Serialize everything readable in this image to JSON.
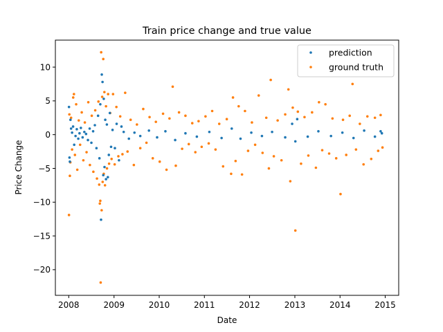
{
  "chart_data": {
    "type": "scatter",
    "title": "Train price change and true value",
    "xlabel": "Date",
    "ylabel": "Price Change",
    "xlim": [
      "2007-09-15",
      "2015-04-20"
    ],
    "ylim": [
      -23.8,
      14.0
    ],
    "x_ticks": [
      "2008",
      "2009",
      "2010",
      "2011",
      "2012",
      "2013",
      "2014",
      "2015"
    ],
    "y_ticks": [
      10,
      5,
      0,
      -5,
      -10,
      -15,
      -20
    ],
    "grid": false,
    "legend_position": "top-right",
    "series": [
      {
        "name": "prediction",
        "color": "#1f77b4",
        "points": [
          {
            "x": "2008-01-03",
            "y": 4.1
          },
          {
            "x": "2008-01-07",
            "y": -3.4
          },
          {
            "x": "2008-01-10",
            "y": -4.0
          },
          {
            "x": "2008-01-15",
            "y": 2.2
          },
          {
            "x": "2008-01-20",
            "y": 0.9
          },
          {
            "x": "2008-01-28",
            "y": 0.3
          },
          {
            "x": "2008-02-05",
            "y": 1.2
          },
          {
            "x": "2008-02-14",
            "y": -1.5
          },
          {
            "x": "2008-02-25",
            "y": -0.2
          },
          {
            "x": "2008-03-06",
            "y": 0.8
          },
          {
            "x": "2008-03-18",
            "y": -0.6
          },
          {
            "x": "2008-03-28",
            "y": 0.2
          },
          {
            "x": "2008-04-08",
            "y": 1.0
          },
          {
            "x": "2008-04-22",
            "y": -0.4
          },
          {
            "x": "2008-05-06",
            "y": 0.4
          },
          {
            "x": "2008-05-20",
            "y": 0.1
          },
          {
            "x": "2008-06-04",
            "y": -0.8
          },
          {
            "x": "2008-06-18",
            "y": 0.9
          },
          {
            "x": "2008-07-02",
            "y": -1.2
          },
          {
            "x": "2008-07-16",
            "y": 0.5
          },
          {
            "x": "2008-07-30",
            "y": 1.4
          },
          {
            "x": "2008-08-12",
            "y": -2.0
          },
          {
            "x": "2008-08-25",
            "y": 2.8
          },
          {
            "x": "2008-09-05",
            "y": -3.5
          },
          {
            "x": "2008-09-12",
            "y": 4.5
          },
          {
            "x": "2008-09-18",
            "y": -12.6
          },
          {
            "x": "2008-09-24",
            "y": 8.9
          },
          {
            "x": "2008-09-30",
            "y": 7.8
          },
          {
            "x": "2008-10-06",
            "y": -6.0
          },
          {
            "x": "2008-10-10",
            "y": 5.3
          },
          {
            "x": "2008-10-16",
            "y": -4.8
          },
          {
            "x": "2008-10-22",
            "y": 2.2
          },
          {
            "x": "2008-10-28",
            "y": -6.6
          },
          {
            "x": "2008-11-04",
            "y": 1.5
          },
          {
            "x": "2008-11-12",
            "y": -6.3
          },
          {
            "x": "2008-11-20",
            "y": -3.0
          },
          {
            "x": "2008-11-28",
            "y": 3.2
          },
          {
            "x": "2008-12-08",
            "y": -1.8
          },
          {
            "x": "2008-12-20",
            "y": 0.7
          },
          {
            "x": "2009-01-08",
            "y": -2.0
          },
          {
            "x": "2009-01-22",
            "y": 1.6
          },
          {
            "x": "2009-02-10",
            "y": -3.8
          },
          {
            "x": "2009-03-02",
            "y": 1.2
          },
          {
            "x": "2009-03-20",
            "y": 0.4
          },
          {
            "x": "2009-05-01",
            "y": -0.6
          },
          {
            "x": "2009-06-15",
            "y": 0.3
          },
          {
            "x": "2009-08-01",
            "y": -0.2
          },
          {
            "x": "2009-10-10",
            "y": 0.6
          },
          {
            "x": "2009-12-15",
            "y": -0.4
          },
          {
            "x": "2010-02-20",
            "y": 0.5
          },
          {
            "x": "2010-05-10",
            "y": -0.8
          },
          {
            "x": "2010-08-01",
            "y": 0.2
          },
          {
            "x": "2010-11-01",
            "y": -0.3
          },
          {
            "x": "2011-02-10",
            "y": 0.4
          },
          {
            "x": "2011-05-20",
            "y": -0.5
          },
          {
            "x": "2011-08-10",
            "y": 0.9
          },
          {
            "x": "2011-10-20",
            "y": -0.6
          },
          {
            "x": "2012-01-15",
            "y": 0.3
          },
          {
            "x": "2012-04-10",
            "y": -0.2
          },
          {
            "x": "2012-07-01",
            "y": 0.4
          },
          {
            "x": "2012-10-15",
            "y": -0.4
          },
          {
            "x": "2012-12-10",
            "y": 1.6
          },
          {
            "x": "2013-01-05",
            "y": -1.0
          },
          {
            "x": "2013-01-20",
            "y": 2.3
          },
          {
            "x": "2013-04-15",
            "y": -0.3
          },
          {
            "x": "2013-07-10",
            "y": 0.5
          },
          {
            "x": "2013-10-20",
            "y": -0.2
          },
          {
            "x": "2014-01-20",
            "y": 0.3
          },
          {
            "x": "2014-04-20",
            "y": -0.5
          },
          {
            "x": "2014-07-15",
            "y": 0.6
          },
          {
            "x": "2014-10-10",
            "y": -0.3
          },
          {
            "x": "2014-11-25",
            "y": 0.5
          },
          {
            "x": "2014-12-05",
            "y": 0.2
          }
        ]
      },
      {
        "name": "ground truth",
        "color": "#ff7f0e",
        "points": [
          {
            "x": "2008-01-03",
            "y": -11.9
          },
          {
            "x": "2008-01-06",
            "y": 3.0
          },
          {
            "x": "2008-01-10",
            "y": -6.1
          },
          {
            "x": "2008-01-14",
            "y": -4.1
          },
          {
            "x": "2008-01-20",
            "y": 2.5
          },
          {
            "x": "2008-01-28",
            "y": -2.2
          },
          {
            "x": "2008-02-06",
            "y": 5.5
          },
          {
            "x": "2008-02-12",
            "y": 6.0
          },
          {
            "x": "2008-02-20",
            "y": -3.0
          },
          {
            "x": "2008-03-01",
            "y": 4.5
          },
          {
            "x": "2008-03-10",
            "y": -5.2
          },
          {
            "x": "2008-03-22",
            "y": 2.1
          },
          {
            "x": "2008-04-02",
            "y": -1.5
          },
          {
            "x": "2008-04-15",
            "y": 3.3
          },
          {
            "x": "2008-04-28",
            "y": -3.8
          },
          {
            "x": "2008-05-10",
            "y": 1.8
          },
          {
            "x": "2008-05-24",
            "y": -2.6
          },
          {
            "x": "2008-06-07",
            "y": 4.8
          },
          {
            "x": "2008-06-20",
            "y": -4.5
          },
          {
            "x": "2008-07-05",
            "y": 2.8
          },
          {
            "x": "2008-07-18",
            "y": -5.5
          },
          {
            "x": "2008-08-02",
            "y": 3.6
          },
          {
            "x": "2008-08-16",
            "y": -6.5
          },
          {
            "x": "2008-08-28",
            "y": 4.9
          },
          {
            "x": "2008-09-03",
            "y": -7.4
          },
          {
            "x": "2008-09-08",
            "y": -10.2
          },
          {
            "x": "2008-09-12",
            "y": -9.8
          },
          {
            "x": "2008-09-15",
            "y": -21.9
          },
          {
            "x": "2008-09-19",
            "y": 12.2
          },
          {
            "x": "2008-09-23",
            "y": -11.2
          },
          {
            "x": "2008-09-27",
            "y": 5.6
          },
          {
            "x": "2008-10-01",
            "y": -7.0
          },
          {
            "x": "2008-10-06",
            "y": 11.2
          },
          {
            "x": "2008-10-10",
            "y": -5.8
          },
          {
            "x": "2008-10-15",
            "y": 6.3
          },
          {
            "x": "2008-10-20",
            "y": -7.5
          },
          {
            "x": "2008-10-28",
            "y": 4.2
          },
          {
            "x": "2008-11-05",
            "y": -5.0
          },
          {
            "x": "2008-11-14",
            "y": 6.0
          },
          {
            "x": "2008-11-22",
            "y": -4.3
          },
          {
            "x": "2008-12-01",
            "y": 3.2
          },
          {
            "x": "2008-12-12",
            "y": -3.6
          },
          {
            "x": "2008-12-24",
            "y": 6.0
          },
          {
            "x": "2009-01-06",
            "y": -4.4
          },
          {
            "x": "2009-01-20",
            "y": 4.1
          },
          {
            "x": "2009-02-05",
            "y": -3.2
          },
          {
            "x": "2009-02-20",
            "y": 2.7
          },
          {
            "x": "2009-03-10",
            "y": -2.9
          },
          {
            "x": "2009-04-01",
            "y": 6.2
          },
          {
            "x": "2009-04-20",
            "y": -2.5
          },
          {
            "x": "2009-05-15",
            "y": 2.2
          },
          {
            "x": "2009-06-10",
            "y": -4.5
          },
          {
            "x": "2009-07-05",
            "y": 1.5
          },
          {
            "x": "2009-08-01",
            "y": -2.0
          },
          {
            "x": "2009-08-25",
            "y": 3.8
          },
          {
            "x": "2009-09-20",
            "y": -1.2
          },
          {
            "x": "2009-10-15",
            "y": 2.6
          },
          {
            "x": "2009-11-10",
            "y": -3.5
          },
          {
            "x": "2009-12-05",
            "y": 1.9
          },
          {
            "x": "2010-01-05",
            "y": -4.0
          },
          {
            "x": "2010-02-01",
            "y": 3.1
          },
          {
            "x": "2010-03-01",
            "y": -5.2
          },
          {
            "x": "2010-03-25",
            "y": 2.4
          },
          {
            "x": "2010-04-20",
            "y": 7.1
          },
          {
            "x": "2010-05-15",
            "y": -4.6
          },
          {
            "x": "2010-06-10",
            "y": 3.3
          },
          {
            "x": "2010-07-05",
            "y": -2.1
          },
          {
            "x": "2010-08-01",
            "y": 2.8
          },
          {
            "x": "2010-08-28",
            "y": -1.4
          },
          {
            "x": "2010-09-25",
            "y": 1.7
          },
          {
            "x": "2010-10-20",
            "y": -2.6
          },
          {
            "x": "2010-11-15",
            "y": 2.0
          },
          {
            "x": "2010-12-10",
            "y": -1.8
          },
          {
            "x": "2011-01-10",
            "y": 2.7
          },
          {
            "x": "2011-02-05",
            "y": -1.3
          },
          {
            "x": "2011-03-05",
            "y": 3.5
          },
          {
            "x": "2011-04-01",
            "y": -2.2
          },
          {
            "x": "2011-05-01",
            "y": 1.6
          },
          {
            "x": "2011-06-01",
            "y": -4.7
          },
          {
            "x": "2011-07-01",
            "y": 2.3
          },
          {
            "x": "2011-08-05",
            "y": -5.8
          },
          {
            "x": "2011-08-20",
            "y": 5.5
          },
          {
            "x": "2011-09-10",
            "y": -3.9
          },
          {
            "x": "2011-10-05",
            "y": 4.2
          },
          {
            "x": "2011-11-01",
            "y": -5.9
          },
          {
            "x": "2011-11-25",
            "y": 3.5
          },
          {
            "x": "2011-12-20",
            "y": -2.4
          },
          {
            "x": "2012-01-20",
            "y": 1.8
          },
          {
            "x": "2012-02-15",
            "y": -1.5
          },
          {
            "x": "2012-03-15",
            "y": 5.8
          },
          {
            "x": "2012-04-15",
            "y": -2.7
          },
          {
            "x": "2012-05-15",
            "y": 2.5
          },
          {
            "x": "2012-06-05",
            "y": -5.0
          },
          {
            "x": "2012-06-20",
            "y": 8.1
          },
          {
            "x": "2012-07-15",
            "y": -3.2
          },
          {
            "x": "2012-08-15",
            "y": 2.1
          },
          {
            "x": "2012-09-15",
            "y": -3.8
          },
          {
            "x": "2012-10-15",
            "y": 3.0
          },
          {
            "x": "2012-11-10",
            "y": 6.7
          },
          {
            "x": "2012-11-25",
            "y": -6.9
          },
          {
            "x": "2012-12-15",
            "y": 4.0
          },
          {
            "x": "2013-01-05",
            "y": -14.2
          },
          {
            "x": "2013-01-25",
            "y": 3.4
          },
          {
            "x": "2013-02-20",
            "y": -4.3
          },
          {
            "x": "2013-03-20",
            "y": 2.6
          },
          {
            "x": "2013-04-20",
            "y": -3.1
          },
          {
            "x": "2013-05-20",
            "y": 3.3
          },
          {
            "x": "2013-06-20",
            "y": -4.9
          },
          {
            "x": "2013-07-15",
            "y": 4.8
          },
          {
            "x": "2013-08-10",
            "y": -2.3
          },
          {
            "x": "2013-09-05",
            "y": 4.5
          },
          {
            "x": "2013-10-05",
            "y": -2.8
          },
          {
            "x": "2013-11-01",
            "y": 2.4
          },
          {
            "x": "2013-12-01",
            "y": -3.5
          },
          {
            "x": "2014-01-05",
            "y": -8.8
          },
          {
            "x": "2014-01-25",
            "y": 2.2
          },
          {
            "x": "2014-02-20",
            "y": -3.0
          },
          {
            "x": "2014-03-20",
            "y": 2.8
          },
          {
            "x": "2014-04-12",
            "y": 7.5
          },
          {
            "x": "2014-05-10",
            "y": -2.2
          },
          {
            "x": "2014-06-10",
            "y": 1.6
          },
          {
            "x": "2014-07-10",
            "y": -4.4
          },
          {
            "x": "2014-08-10",
            "y": 2.7
          },
          {
            "x": "2014-09-10",
            "y": -3.6
          },
          {
            "x": "2014-10-10",
            "y": 2.5
          },
          {
            "x": "2014-11-05",
            "y": -2.4
          },
          {
            "x": "2014-11-25",
            "y": 2.9
          },
          {
            "x": "2014-12-10",
            "y": -1.9
          }
        ]
      }
    ]
  }
}
